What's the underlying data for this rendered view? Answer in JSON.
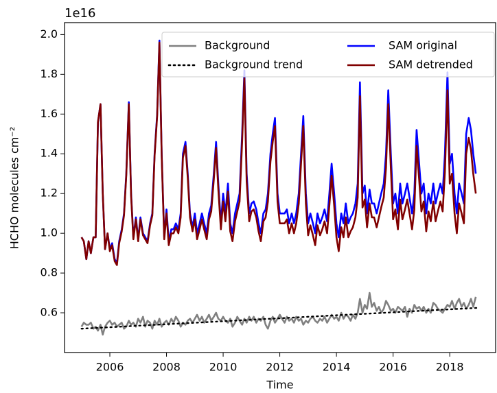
{
  "chart_data": {
    "type": "line",
    "y_offset_label": "1e16",
    "ylabel": "HCHO molecules cm⁻²",
    "xlabel": "Time",
    "legend": "upper right",
    "xlim": [
      2004.4,
      2019.62
    ],
    "xticks": [
      2006,
      2008,
      2010,
      2012,
      2014,
      2016,
      2018
    ],
    "ylim": [
      0.4,
      2.06
    ],
    "yticks": [
      0.6,
      0.8,
      {
        "value": 1,
        "label": "1.0"
      },
      1.2,
      1.4,
      1.6,
      1.8,
      {
        "value": 2,
        "label": "2.0"
      }
    ],
    "x": [
      2005,
      2005.08,
      2005.17,
      2005.25,
      2005.33,
      2005.42,
      2005.5,
      2005.58,
      2005.67,
      2005.75,
      2005.83,
      2005.92,
      2006,
      2006.08,
      2006.17,
      2006.25,
      2006.33,
      2006.42,
      2006.5,
      2006.58,
      2006.67,
      2006.75,
      2006.83,
      2006.92,
      2007,
      2007.08,
      2007.17,
      2007.25,
      2007.33,
      2007.42,
      2007.5,
      2007.58,
      2007.67,
      2007.75,
      2007.83,
      2007.92,
      2008,
      2008.08,
      2008.17,
      2008.25,
      2008.33,
      2008.42,
      2008.5,
      2008.58,
      2008.67,
      2008.75,
      2008.83,
      2008.92,
      2009,
      2009.08,
      2009.17,
      2009.25,
      2009.33,
      2009.42,
      2009.5,
      2009.58,
      2009.67,
      2009.75,
      2009.83,
      2009.92,
      2010,
      2010.08,
      2010.17,
      2010.25,
      2010.33,
      2010.42,
      2010.5,
      2010.58,
      2010.67,
      2010.75,
      2010.83,
      2010.92,
      2011,
      2011.08,
      2011.17,
      2011.25,
      2011.33,
      2011.42,
      2011.5,
      2011.58,
      2011.67,
      2011.75,
      2011.83,
      2011.92,
      2012,
      2012.08,
      2012.17,
      2012.25,
      2012.33,
      2012.42,
      2012.5,
      2012.58,
      2012.67,
      2012.75,
      2012.83,
      2012.92,
      2013,
      2013.08,
      2013.17,
      2013.25,
      2013.33,
      2013.42,
      2013.5,
      2013.58,
      2013.67,
      2013.75,
      2013.83,
      2013.92,
      2014,
      2014.08,
      2014.17,
      2014.25,
      2014.33,
      2014.42,
      2014.5,
      2014.58,
      2014.67,
      2014.75,
      2014.83,
      2014.92,
      2015,
      2015.08,
      2015.17,
      2015.25,
      2015.33,
      2015.42,
      2015.5,
      2015.58,
      2015.67,
      2015.75,
      2015.83,
      2015.92,
      2016,
      2016.08,
      2016.17,
      2016.25,
      2016.33,
      2016.42,
      2016.5,
      2016.58,
      2016.67,
      2016.75,
      2016.83,
      2016.92,
      2017,
      2017.08,
      2017.17,
      2017.25,
      2017.33,
      2017.42,
      2017.5,
      2017.58,
      2017.67,
      2017.75,
      2017.83,
      2017.92,
      2018,
      2018.08,
      2018.17,
      2018.25,
      2018.33,
      2018.42,
      2018.5,
      2018.58,
      2018.67,
      2018.75,
      2018.83,
      2018.92
    ],
    "series": [
      {
        "name": "Background",
        "color": "#808080",
        "dash": "solid",
        "values": [
          0.53,
          0.55,
          0.54,
          0.54,
          0.55,
          0.52,
          0.53,
          0.51,
          0.54,
          0.49,
          0.53,
          0.55,
          0.56,
          0.54,
          0.55,
          0.53,
          0.54,
          0.55,
          0.52,
          0.53,
          0.56,
          0.54,
          0.55,
          0.53,
          0.57,
          0.55,
          0.58,
          0.53,
          0.56,
          0.55,
          0.52,
          0.56,
          0.54,
          0.57,
          0.53,
          0.55,
          0.56,
          0.54,
          0.57,
          0.55,
          0.58,
          0.56,
          0.53,
          0.55,
          0.54,
          0.56,
          0.57,
          0.55,
          0.57,
          0.59,
          0.56,
          0.58,
          0.55,
          0.57,
          0.59,
          0.56,
          0.58,
          0.6,
          0.57,
          0.56,
          0.58,
          0.56,
          0.55,
          0.57,
          0.53,
          0.55,
          0.58,
          0.56,
          0.54,
          0.57,
          0.55,
          0.58,
          0.56,
          0.58,
          0.55,
          0.57,
          0.56,
          0.58,
          0.54,
          0.52,
          0.56,
          0.58,
          0.55,
          0.57,
          0.59,
          0.57,
          0.55,
          0.58,
          0.56,
          0.57,
          0.55,
          0.58,
          0.56,
          0.57,
          0.54,
          0.56,
          0.55,
          0.57,
          0.58,
          0.56,
          0.55,
          0.57,
          0.56,
          0.58,
          0.55,
          0.57,
          0.59,
          0.57,
          0.58,
          0.56,
          0.6,
          0.57,
          0.59,
          0.58,
          0.56,
          0.59,
          0.57,
          0.6,
          0.67,
          0.6,
          0.64,
          0.62,
          0.7,
          0.63,
          0.65,
          0.61,
          0.63,
          0.6,
          0.62,
          0.66,
          0.64,
          0.61,
          0.62,
          0.6,
          0.63,
          0.62,
          0.61,
          0.63,
          0.58,
          0.62,
          0.6,
          0.64,
          0.62,
          0.63,
          0.61,
          0.63,
          0.6,
          0.62,
          0.6,
          0.65,
          0.64,
          0.62,
          0.61,
          0.6,
          0.62,
          0.64,
          0.63,
          0.66,
          0.62,
          0.65,
          0.67,
          0.63,
          0.65,
          0.62,
          0.64,
          0.67,
          0.63,
          0.68
        ]
      },
      {
        "name": "Background trend",
        "color": "#000000",
        "dash": "dotted",
        "x": [
          2005,
          2019
        ],
        "values": [
          0.52,
          0.625
        ]
      },
      {
        "name": "SAM original",
        "color": "#0000ff",
        "dash": "solid",
        "values": [
          0.98,
          0.96,
          0.87,
          0.96,
          0.9,
          0.98,
          0.98,
          1.56,
          1.65,
          1.2,
          0.92,
          1.0,
          0.92,
          0.95,
          0.87,
          0.85,
          0.96,
          1.02,
          1.1,
          1.3,
          1.66,
          1.2,
          0.98,
          1.08,
          0.97,
          1.08,
          1.0,
          0.98,
          0.96,
          1.05,
          1.1,
          1.4,
          1.6,
          1.97,
          1.4,
          0.98,
          1.12,
          0.96,
          1.02,
          1.02,
          1.05,
          1.02,
          1.1,
          1.4,
          1.46,
          1.3,
          1.1,
          1.03,
          1.1,
          1.0,
          1.05,
          1.1,
          1.05,
          1.0,
          1.1,
          1.14,
          1.3,
          1.46,
          1.25,
          1.05,
          1.2,
          1.1,
          1.25,
          1.05,
          1.0,
          1.1,
          1.15,
          1.2,
          1.5,
          1.82,
          1.3,
          1.1,
          1.15,
          1.16,
          1.12,
          1.05,
          1.0,
          1.1,
          1.12,
          1.2,
          1.4,
          1.5,
          1.58,
          1.2,
          1.1,
          1.1,
          1.1,
          1.12,
          1.05,
          1.1,
          1.05,
          1.1,
          1.2,
          1.4,
          1.59,
          1.2,
          1.05,
          1.1,
          1.05,
          1.0,
          1.1,
          1.05,
          1.08,
          1.12,
          1.06,
          1.2,
          1.35,
          1.2,
          1.05,
          0.98,
          1.1,
          1.05,
          1.15,
          1.05,
          1.08,
          1.1,
          1.15,
          1.25,
          1.76,
          1.2,
          1.24,
          1.1,
          1.22,
          1.15,
          1.15,
          1.1,
          1.15,
          1.2,
          1.25,
          1.4,
          1.72,
          1.4,
          1.15,
          1.2,
          1.1,
          1.25,
          1.15,
          1.2,
          1.25,
          1.18,
          1.1,
          1.2,
          1.52,
          1.35,
          1.2,
          1.25,
          1.1,
          1.2,
          1.15,
          1.25,
          1.15,
          1.2,
          1.25,
          1.2,
          1.4,
          1.81,
          1.35,
          1.4,
          1.2,
          1.1,
          1.25,
          1.2,
          1.15,
          1.5,
          1.58,
          1.52,
          1.4,
          1.3
        ]
      },
      {
        "name": "SAM detrended",
        "color": "#800000",
        "dash": "solid",
        "values": [
          0.98,
          0.96,
          0.87,
          0.96,
          0.9,
          0.98,
          0.98,
          1.56,
          1.65,
          1.2,
          0.92,
          1.0,
          0.91,
          0.94,
          0.86,
          0.84,
          0.95,
          1.01,
          1.09,
          1.29,
          1.65,
          1.19,
          0.97,
          1.07,
          0.96,
          1.07,
          0.99,
          0.97,
          0.95,
          1.04,
          1.09,
          1.39,
          1.59,
          1.96,
          1.39,
          0.97,
          1.1,
          0.94,
          1.0,
          1.0,
          1.03,
          1.0,
          1.08,
          1.38,
          1.44,
          1.28,
          1.08,
          1.01,
          1.07,
          0.97,
          1.02,
          1.07,
          1.02,
          0.97,
          1.07,
          1.11,
          1.27,
          1.43,
          1.22,
          1.02,
          1.16,
          1.06,
          1.21,
          1.01,
          0.96,
          1.06,
          1.11,
          1.16,
          1.46,
          1.78,
          1.26,
          1.06,
          1.11,
          1.12,
          1.08,
          1.01,
          0.96,
          1.06,
          1.08,
          1.16,
          1.36,
          1.46,
          1.54,
          1.16,
          1.05,
          1.05,
          1.05,
          1.07,
          1.0,
          1.05,
          1.0,
          1.05,
          1.15,
          1.35,
          1.54,
          1.15,
          0.99,
          1.04,
          0.99,
          0.94,
          1.04,
          0.99,
          1.02,
          1.06,
          1.0,
          1.14,
          1.29,
          1.14,
          0.98,
          0.91,
          1.03,
          0.98,
          1.08,
          0.98,
          1.01,
          1.03,
          1.08,
          1.18,
          1.69,
          1.13,
          1.17,
          1.03,
          1.15,
          1.08,
          1.08,
          1.03,
          1.08,
          1.13,
          1.18,
          1.33,
          1.65,
          1.33,
          1.07,
          1.12,
          1.02,
          1.17,
          1.07,
          1.12,
          1.17,
          1.1,
          1.02,
          1.12,
          1.44,
          1.27,
          1.11,
          1.16,
          1.01,
          1.11,
          1.06,
          1.16,
          1.06,
          1.11,
          1.16,
          1.11,
          1.31,
          1.72,
          1.25,
          1.3,
          1.1,
          1.0,
          1.15,
          1.1,
          1.05,
          1.4,
          1.48,
          1.42,
          1.3,
          1.2
        ]
      }
    ]
  }
}
